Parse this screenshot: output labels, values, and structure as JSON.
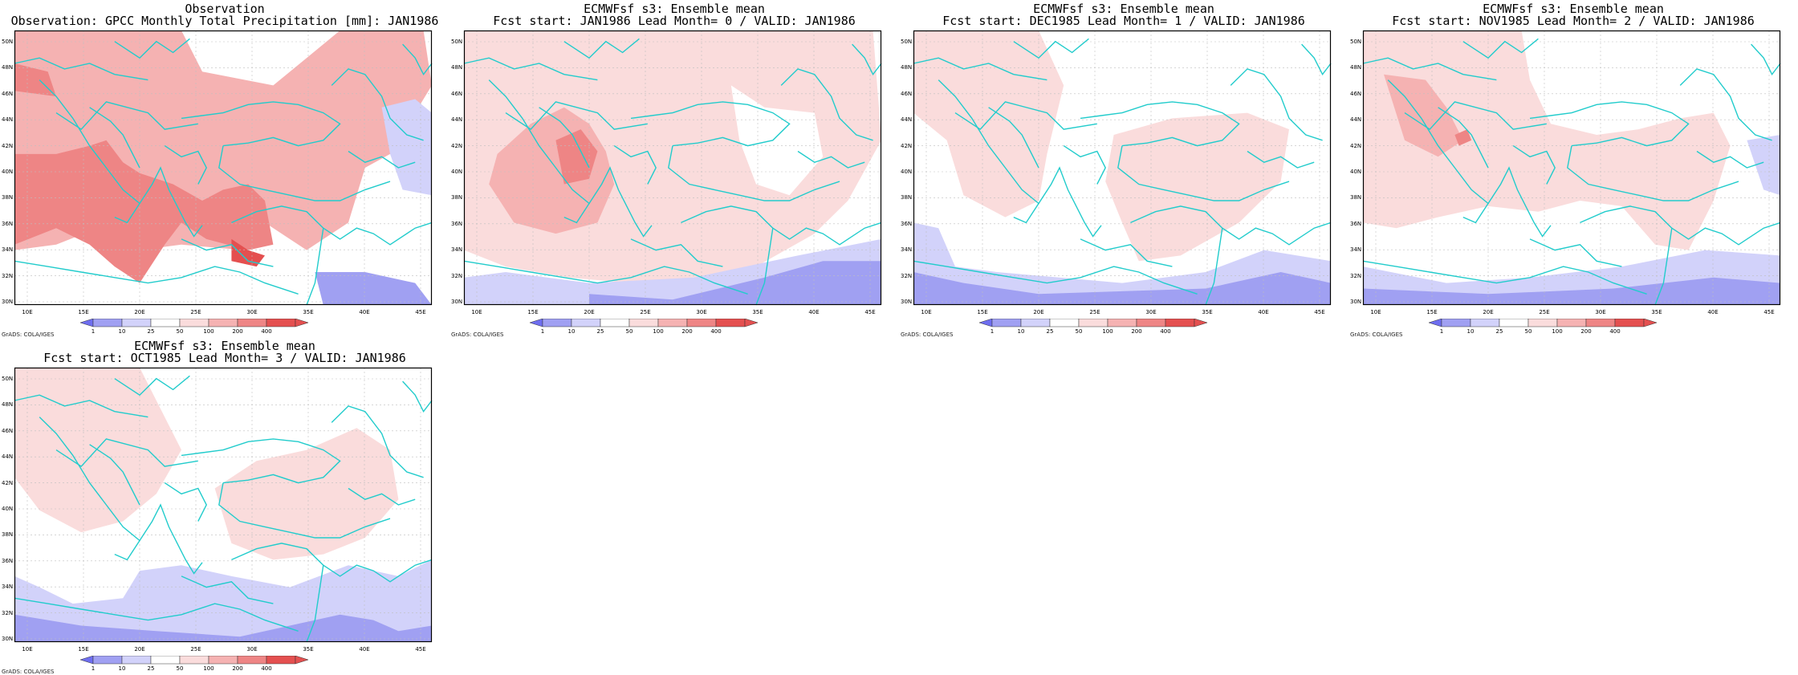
{
  "panels": [
    {
      "title1": "Observation",
      "title2": "Observation: GPCC Monthly Total Precipitation [mm]: JAN1986"
    },
    {
      "title1": "ECMWFsf s3: Ensemble mean",
      "title2": "Fcst start: JAN1986  Lead Month= 0 / VALID: JAN1986"
    },
    {
      "title1": "ECMWFsf s3: Ensemble mean",
      "title2": "Fcst start: DEC1985  Lead Month= 1 / VALID: JAN1986"
    },
    {
      "title1": "ECMWFsf s3: Ensemble mean",
      "title2": "Fcst start: NOV1985  Lead Month= 2 / VALID: JAN1986"
    },
    {
      "title1": "ECMWFsf s3: Ensemble mean",
      "title2": "Fcst start: OCT1985  Lead Month= 3 / VALID: JAN1986"
    }
  ],
  "axes": {
    "lon_labels": [
      "10E",
      "15E",
      "20E",
      "25E",
      "30E",
      "35E",
      "40E",
      "45E"
    ],
    "lat_labels": [
      "30N",
      "32N",
      "34N",
      "36N",
      "38N",
      "40N",
      "42N",
      "44N",
      "46N",
      "48N",
      "50N"
    ]
  },
  "colorbar": {
    "labels": [
      "1",
      "10",
      "25",
      "50",
      "100",
      "200",
      "400"
    ],
    "colors": [
      "#6e6ef0",
      "#a0a0f2",
      "#d2d2fa",
      "#ffffff",
      "#fadcdc",
      "#f5b2b2",
      "#ee8585",
      "#e45050"
    ]
  },
  "grads_label": "GrADS: COLA/IGES",
  "colors": {
    "coast": "#22cccc",
    "grid": "#bfbfbf"
  }
}
